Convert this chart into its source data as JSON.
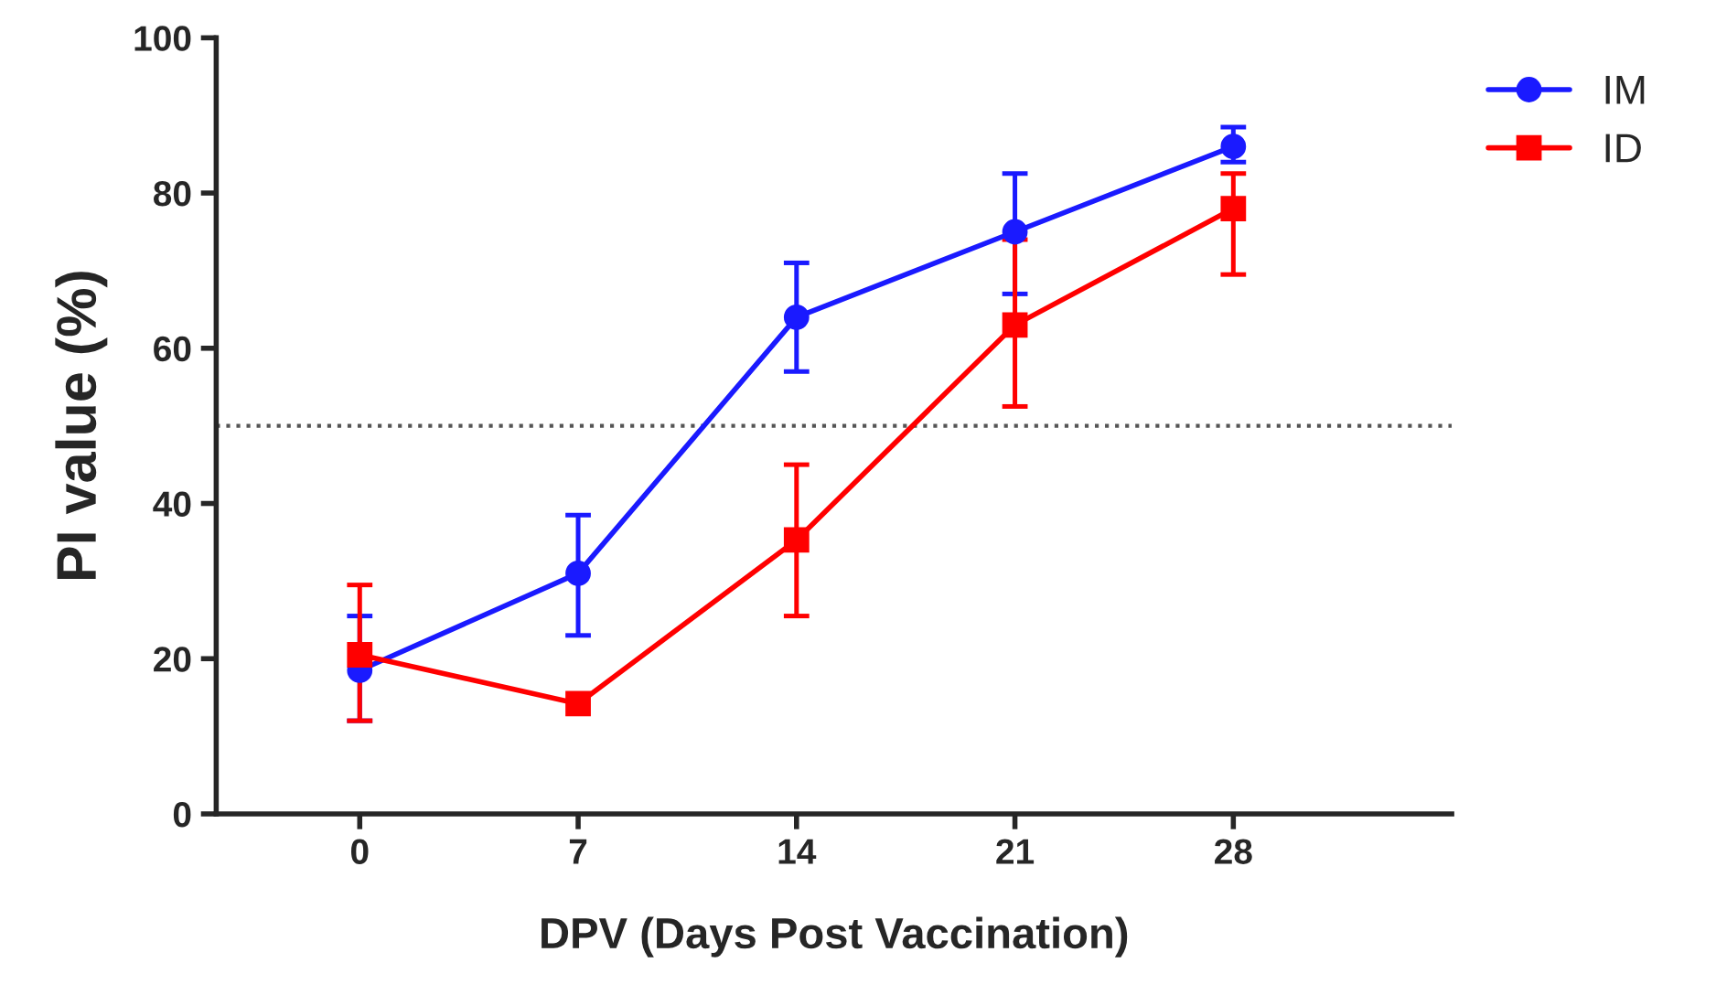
{
  "chart_data": {
    "type": "line",
    "xlabel": "DPV (Days Post Vaccination)",
    "ylabel": "PI value (%)",
    "x": [
      0,
      7,
      14,
      21,
      28
    ],
    "xlim": [
      -4.6,
      35
    ],
    "xticks": [
      0,
      7,
      14,
      21,
      28
    ],
    "ylim": [
      0,
      100
    ],
    "yticks": [
      0,
      20,
      40,
      60,
      80,
      100
    ],
    "series": [
      {
        "name": "IM",
        "color": "#1a1aff",
        "marker": "circle",
        "values": [
          18.5,
          31,
          64,
          75,
          86
        ],
        "errors": [
          [
            12,
            25.5
          ],
          [
            23,
            38.5
          ],
          [
            57,
            71
          ],
          [
            67,
            82.5
          ],
          [
            84,
            88.5
          ]
        ]
      },
      {
        "name": "ID",
        "color": "#ff0000",
        "marker": "square",
        "values": [
          20.5,
          14.2,
          35.3,
          63,
          78
        ],
        "errors": [
          [
            12,
            29.5
          ],
          null,
          [
            25.5,
            45
          ],
          [
            52.5,
            74
          ],
          [
            69.5,
            82.5
          ]
        ]
      }
    ],
    "ref_lines": [
      {
        "axis": "y",
        "value": 50,
        "line_style": "dotted",
        "color": "#555555"
      }
    ],
    "legend": "top right",
    "grid": false
  }
}
